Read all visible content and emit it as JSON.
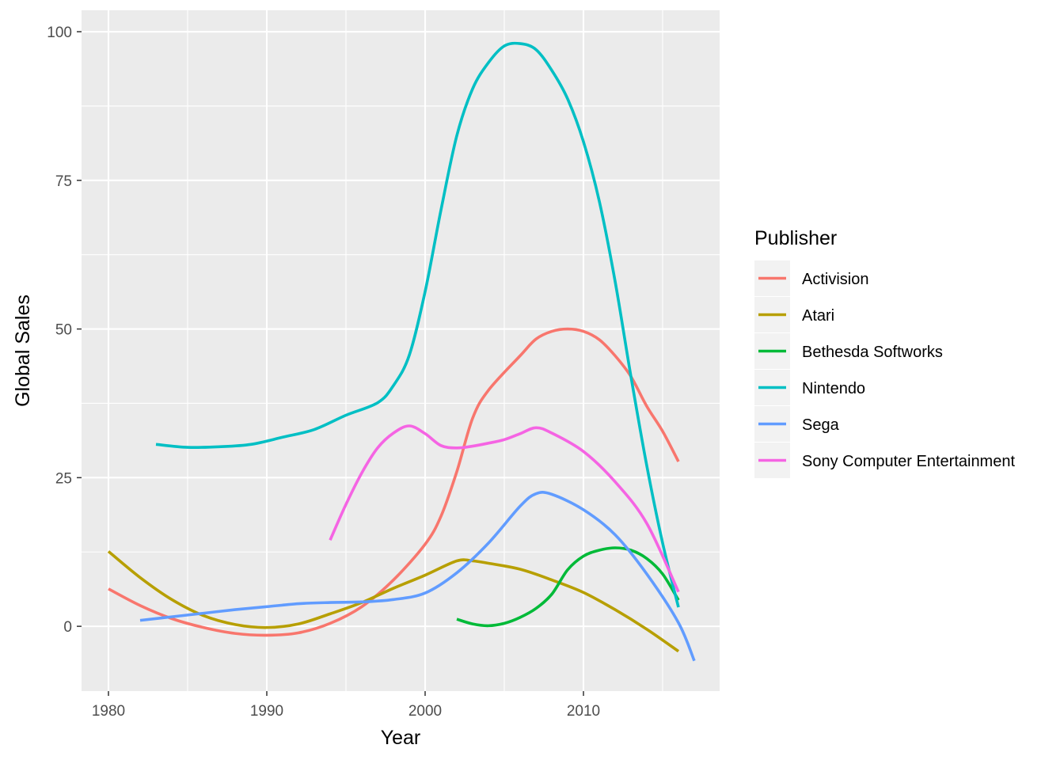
{
  "chart_data": {
    "type": "line",
    "title": "",
    "xlabel": "Year",
    "ylabel": "Global Sales",
    "xlim": [
      1978.3,
      2018.6
    ],
    "ylim": [
      -10.9,
      103.6
    ],
    "x_ticks": [
      1980,
      1990,
      2000,
      2010
    ],
    "y_ticks": [
      0,
      25,
      50,
      75,
      100
    ],
    "x_tick_labels": [
      "1980",
      "1990",
      "2000",
      "2010"
    ],
    "y_tick_labels": [
      "0",
      "25",
      "50",
      "75",
      "100"
    ],
    "grid": true,
    "legend": {
      "title": "Publisher",
      "position": "right"
    },
    "series": [
      {
        "name": "Activision",
        "color": "#F8766D",
        "points": [
          [
            1980,
            6.3
          ],
          [
            1982,
            3.5
          ],
          [
            1984,
            1.3
          ],
          [
            1986,
            -0.2
          ],
          [
            1988,
            -1.2
          ],
          [
            1990,
            -1.5
          ],
          [
            1992,
            -1.1
          ],
          [
            1994,
            0.5
          ],
          [
            1996,
            3.3
          ],
          [
            1998,
            7.8
          ],
          [
            2000,
            13.8
          ],
          [
            2001,
            18.5
          ],
          [
            2002,
            26
          ],
          [
            2003,
            35
          ],
          [
            2004,
            39.7
          ],
          [
            2006,
            45.5
          ],
          [
            2007,
            48.3
          ],
          [
            2008,
            49.6
          ],
          [
            2009,
            50
          ],
          [
            2010,
            49.6
          ],
          [
            2011,
            48.2
          ],
          [
            2012,
            45.5
          ],
          [
            2013,
            42
          ],
          [
            2014,
            37
          ],
          [
            2015,
            32.8
          ],
          [
            2016,
            27.7
          ]
        ]
      },
      {
        "name": "Atari",
        "color": "#B79F00",
        "points": [
          [
            1980,
            12.6
          ],
          [
            1982,
            8.2
          ],
          [
            1984,
            4.5
          ],
          [
            1986,
            1.8
          ],
          [
            1988,
            0.3
          ],
          [
            1990,
            -0.2
          ],
          [
            1992,
            0.4
          ],
          [
            1994,
            2.1
          ],
          [
            1996,
            4
          ],
          [
            1998,
            6.4
          ],
          [
            2000,
            8.6
          ],
          [
            2002,
            11
          ],
          [
            2003,
            11
          ],
          [
            2004,
            10.6
          ],
          [
            2006,
            9.6
          ],
          [
            2008,
            7.8
          ],
          [
            2010,
            5.7
          ],
          [
            2012,
            2.8
          ],
          [
            2014,
            -0.5
          ],
          [
            2016,
            -4.2
          ]
        ]
      },
      {
        "name": "Bethesda Softworks",
        "color": "#00BA38",
        "points": [
          [
            2002,
            1.2
          ],
          [
            2003,
            0.4
          ],
          [
            2004,
            0.1
          ],
          [
            2005,
            0.5
          ],
          [
            2006,
            1.5
          ],
          [
            2007,
            3
          ],
          [
            2008,
            5.4
          ],
          [
            2009,
            9.5
          ],
          [
            2010,
            11.8
          ],
          [
            2011,
            12.8
          ],
          [
            2012,
            13.2
          ],
          [
            2013,
            12.8
          ],
          [
            2014,
            11.4
          ],
          [
            2015,
            8.8
          ],
          [
            2016,
            4.4
          ]
        ]
      },
      {
        "name": "Nintendo",
        "color": "#00BFC4",
        "points": [
          [
            1983,
            30.6
          ],
          [
            1985,
            30.1
          ],
          [
            1987,
            30.2
          ],
          [
            1989,
            30.6
          ],
          [
            1991,
            31.8
          ],
          [
            1993,
            33.1
          ],
          [
            1995,
            35.5
          ],
          [
            1997,
            37.6
          ],
          [
            1998,
            40.5
          ],
          [
            1999,
            45.6
          ],
          [
            2000,
            56.3
          ],
          [
            2001,
            70
          ],
          [
            2002,
            82.5
          ],
          [
            2003,
            90.4
          ],
          [
            2004,
            94.8
          ],
          [
            2005,
            97.6
          ],
          [
            2006,
            98
          ],
          [
            2007,
            97
          ],
          [
            2008,
            93.5
          ],
          [
            2009,
            88.7
          ],
          [
            2010,
            81.5
          ],
          [
            2011,
            71.5
          ],
          [
            2012,
            58
          ],
          [
            2013,
            42
          ],
          [
            2014,
            27
          ],
          [
            2015,
            14
          ],
          [
            2016,
            3.2
          ]
        ]
      },
      {
        "name": "Sega",
        "color": "#619CFF",
        "points": [
          [
            1982,
            1
          ],
          [
            1984,
            1.6
          ],
          [
            1986,
            2.2
          ],
          [
            1988,
            2.8
          ],
          [
            1990,
            3.3
          ],
          [
            1992,
            3.8
          ],
          [
            1994,
            4
          ],
          [
            1996,
            4.1
          ],
          [
            1998,
            4.5
          ],
          [
            2000,
            5.6
          ],
          [
            2002,
            9
          ],
          [
            2004,
            14
          ],
          [
            2006,
            20.2
          ],
          [
            2007,
            22.3
          ],
          [
            2008,
            22.2
          ],
          [
            2010,
            19.6
          ],
          [
            2012,
            15.4
          ],
          [
            2014,
            8.8
          ],
          [
            2016,
            0.6
          ],
          [
            2017,
            -5.8
          ]
        ]
      },
      {
        "name": "Sony Computer Entertainment",
        "color": "#F564E3",
        "points": [
          [
            1994,
            14.5
          ],
          [
            1995,
            20.5
          ],
          [
            1996,
            25.8
          ],
          [
            1997,
            30
          ],
          [
            1998,
            32.5
          ],
          [
            1999,
            33.7
          ],
          [
            2000,
            32.4
          ],
          [
            2001,
            30.4
          ],
          [
            2002,
            30
          ],
          [
            2003,
            30.3
          ],
          [
            2004,
            30.8
          ],
          [
            2005,
            31.4
          ],
          [
            2006,
            32.4
          ],
          [
            2007,
            33.4
          ],
          [
            2008,
            32.5
          ],
          [
            2010,
            29.4
          ],
          [
            2012,
            24.3
          ],
          [
            2014,
            17.3
          ],
          [
            2016,
            5.8
          ]
        ]
      }
    ]
  }
}
